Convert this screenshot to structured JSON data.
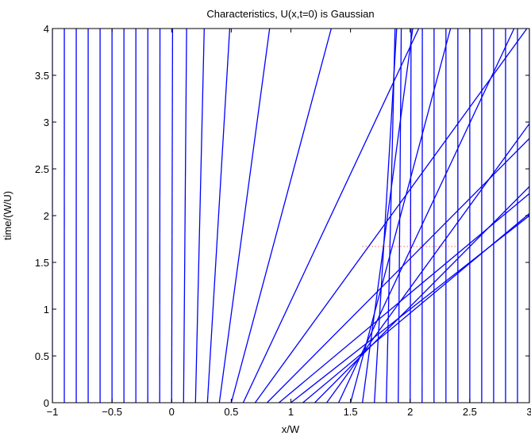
{
  "chart_data": {
    "type": "line",
    "title": "Characteristics, U(x,t=0) is Gaussian",
    "xlabel": "x/W",
    "ylabel": "time/(W/U)",
    "xlim": [
      -1,
      3
    ],
    "ylim": [
      0,
      4
    ],
    "xticks": [
      "-1",
      "-0.5",
      "0",
      "0.5",
      "1",
      "1.5",
      "2",
      "2.5",
      "3"
    ],
    "yticks": [
      "0",
      "0.5",
      "1",
      "1.5",
      "2",
      "2.5",
      "3",
      "3.5",
      "4"
    ],
    "grid": false,
    "line_color": "#0000ff",
    "shock_marker_color": "#ff0000",
    "characteristics": {
      "x0_start": -1,
      "x0_step": 0.1,
      "count": 41,
      "slope_dx_dt": "exp(-((x0-1)/0.4)^2)",
      "gaussian_center": 1,
      "gaussian_width": 0.4
    },
    "shock_marker": {
      "x": 2,
      "t": 1.67
    }
  }
}
